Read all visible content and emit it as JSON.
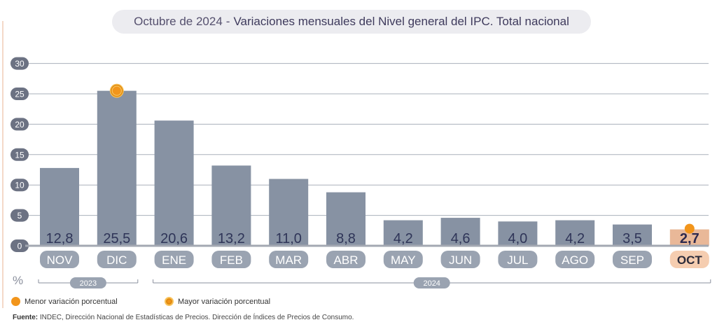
{
  "header": {
    "date": "Octubre de 2024",
    "separator": "-",
    "title": "Variaciones mensuales del Nivel general del IPC. Total nacional"
  },
  "chart_data": {
    "type": "bar",
    "categories": [
      "NOV",
      "DIC",
      "ENE",
      "FEB",
      "MAR",
      "ABR",
      "MAY",
      "JUN",
      "JUL",
      "AGO",
      "SEP",
      "OCT"
    ],
    "values": [
      12.8,
      25.5,
      20.6,
      13.2,
      11.0,
      8.8,
      4.2,
      4.6,
      4.0,
      4.2,
      3.5,
      2.7
    ],
    "value_labels": [
      "12,8",
      "25,5",
      "20,6",
      "13,2",
      "11,0",
      "8,8",
      "4,2",
      "4,6",
      "4,0",
      "4,2",
      "3,5",
      "2,7"
    ],
    "ylim": [
      0,
      30
    ],
    "yticks": [
      "0",
      "5",
      "10",
      "15",
      "20",
      "25",
      "30"
    ],
    "ylabel": "%",
    "grid": true,
    "year_groups": [
      {
        "label": "2023",
        "categories": [
          "NOV",
          "DIC"
        ]
      },
      {
        "label": "2024",
        "categories": [
          "ENE",
          "FEB",
          "MAR",
          "ABR",
          "MAY",
          "JUN",
          "JUL",
          "AGO",
          "SEP",
          "OCT"
        ]
      }
    ],
    "min_index": 11,
    "max_index": 1,
    "colors": {
      "bar": "#8792a3",
      "highlight_bar": "#e9b898",
      "month_pill": "#9aa3b1",
      "highlight_pill": "#f5cdb0",
      "marker": "#f2951b",
      "axis_pill": "#6c7283",
      "gridline": "#aab0bb",
      "baseline": "#a3a8b2"
    }
  },
  "legend": {
    "min_label": "Menor variación porcentual",
    "max_label": "Mayor variación porcentual"
  },
  "source": {
    "prefix": "Fuente:",
    "text": "INDEC, Dirección Nacional de Estadísticas de Precios. Dirección de Índices de Precios de Consumo."
  }
}
